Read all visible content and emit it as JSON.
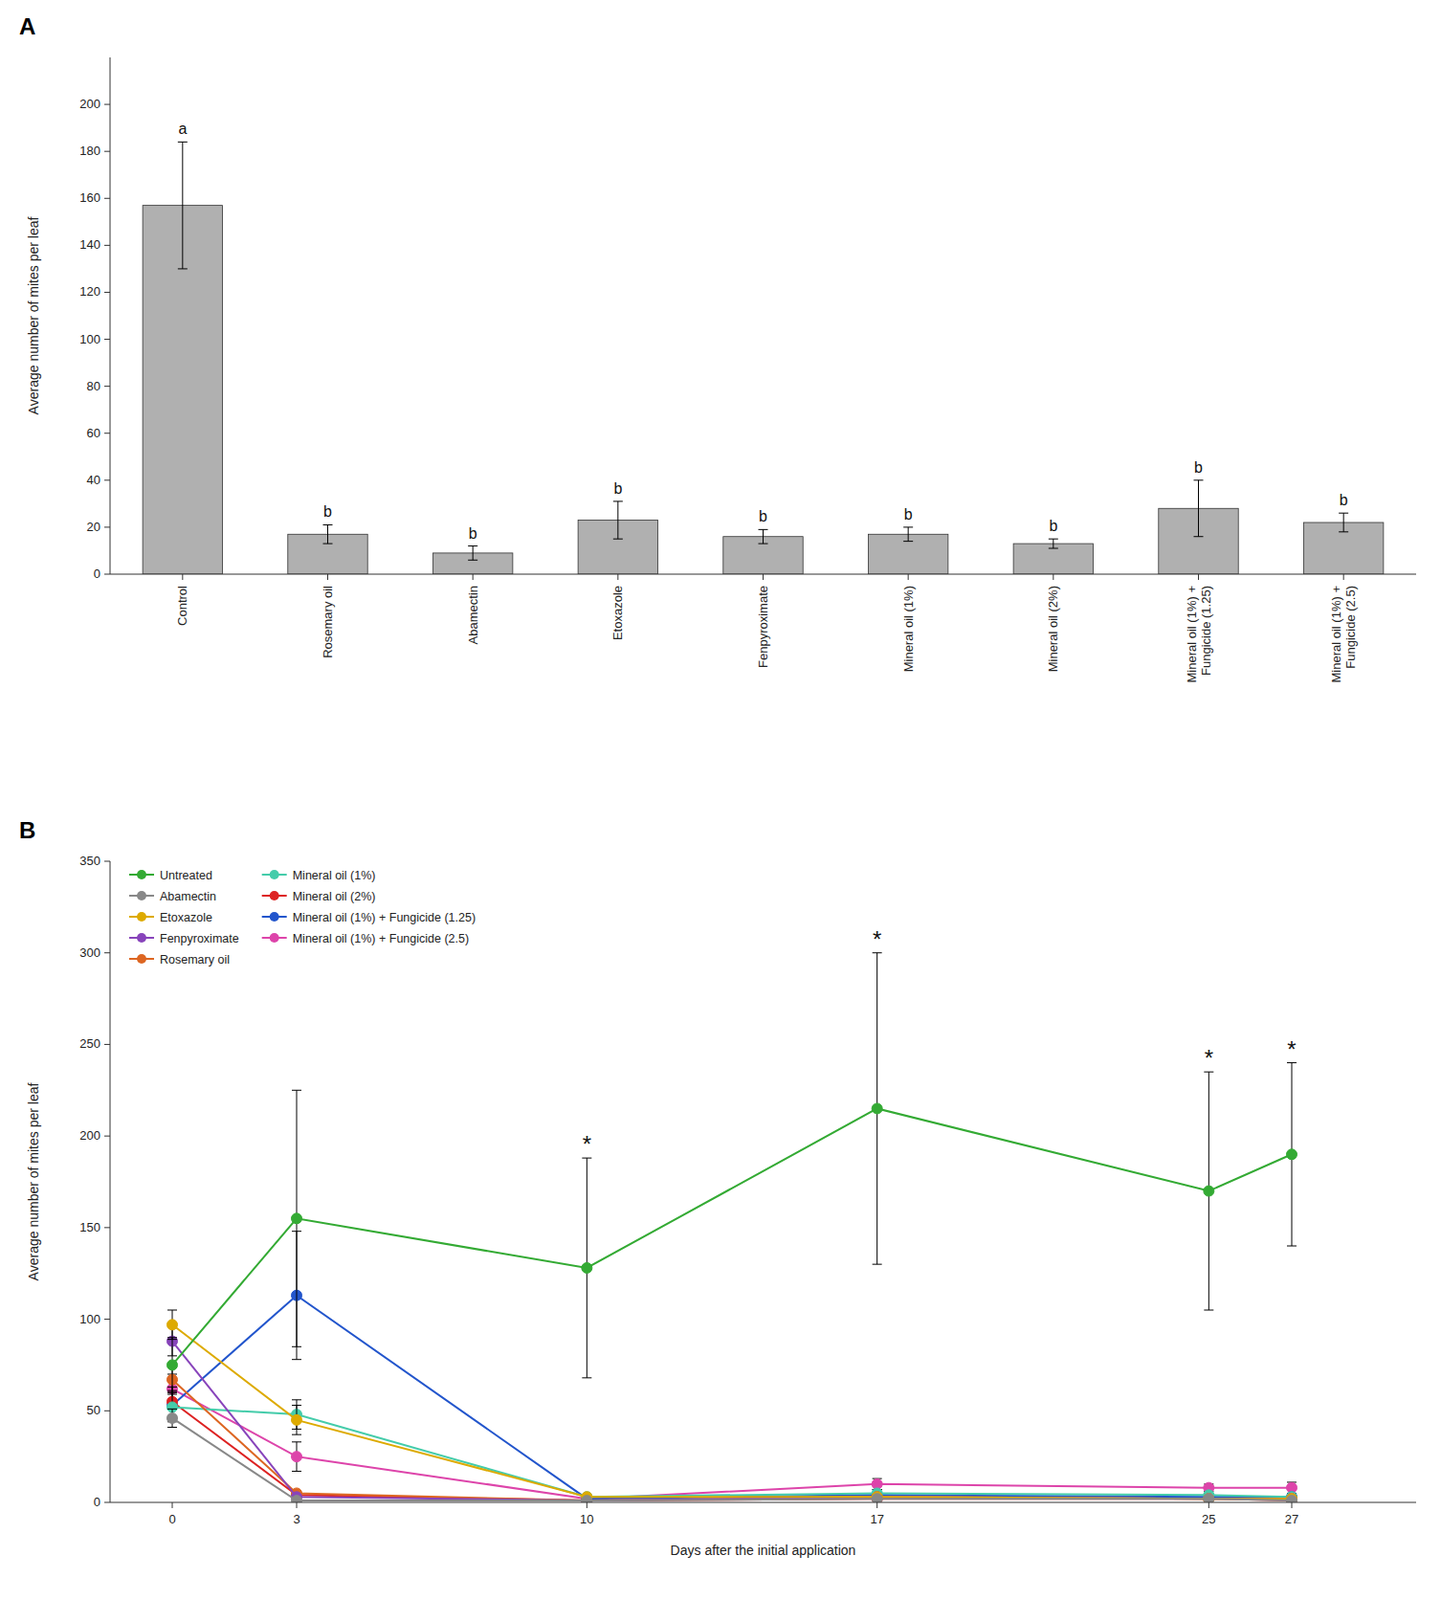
{
  "chart_data": [
    {
      "type": "bar",
      "title": "A",
      "categories": [
        "Control",
        "Rosemary oil",
        "Abamectin",
        "Etoxazole",
        "Fenpyroximate",
        "Mineral oil (1%)",
        "Mineral oil (2%)",
        "Mineral oil (1%) +\nFungicide (1.25)",
        "Mineral oil (1%) +\nFungicide (2.5)"
      ],
      "values": [
        157,
        17,
        9,
        23,
        16,
        17,
        13,
        28,
        22
      ],
      "errors": [
        27,
        4,
        3,
        8,
        3,
        3,
        2,
        12,
        4
      ],
      "annotations": [
        "a",
        "b",
        "b",
        "b",
        "b",
        "b",
        "b",
        "b",
        "b"
      ],
      "color": "#b0b0b0",
      "ylabel": "Average number of mites per leaf",
      "ylim": [
        0,
        220
      ],
      "yticks": [
        0,
        20,
        40,
        60,
        80,
        100,
        120,
        140,
        160,
        180,
        200
      ],
      "grid": false
    },
    {
      "type": "line",
      "title": "B",
      "x": [
        0,
        3,
        10,
        17,
        25,
        27
      ],
      "series": [
        {
          "name": "Untreated",
          "color": "#33aa33",
          "values": [
            75,
            155,
            128,
            215,
            170,
            190
          ],
          "errors": [
            15,
            70,
            60,
            85,
            65,
            50
          ]
        },
        {
          "name": "Abamectin",
          "color": "#888888",
          "values": [
            46,
            1,
            1,
            2,
            2,
            1
          ],
          "errors": [
            5,
            0.5,
            0.3,
            0.5,
            0.5,
            0.3
          ]
        },
        {
          "name": "Etoxazole",
          "color": "#ddaa00",
          "values": [
            97,
            45,
            3,
            3,
            2,
            2
          ],
          "errors": [
            8,
            8,
            0.5,
            1,
            0.5,
            0.5
          ]
        },
        {
          "name": "Fenpyroximate",
          "color": "#8844bb",
          "values": [
            88,
            3,
            1,
            3,
            2,
            2
          ],
          "errors": [
            8,
            1,
            0.3,
            1,
            0.5,
            0.5
          ]
        },
        {
          "name": "Rosemary oil",
          "color": "#dd6622",
          "values": [
            67,
            5,
            1,
            3,
            2,
            2
          ],
          "errors": [
            8,
            1.5,
            0.3,
            1,
            0.5,
            0.5
          ]
        },
        {
          "name": "Mineral oil (1%)",
          "color": "#44ccaa",
          "values": [
            52,
            48,
            3,
            5,
            4,
            3
          ],
          "errors": [
            8,
            8,
            0.5,
            2,
            1,
            1
          ]
        },
        {
          "name": "Mineral oil (2%)",
          "color": "#dd2222",
          "values": [
            55,
            4,
            1,
            2,
            2,
            1
          ],
          "errors": [
            8,
            1,
            0.3,
            0.5,
            0.5,
            0.3
          ]
        },
        {
          "name": "Mineral oil (1%) + Fungicide (1.25)",
          "color": "#2255cc",
          "values": [
            53,
            113,
            2,
            4,
            3,
            3
          ],
          "errors": [
            8,
            35,
            0.3,
            1,
            1,
            1
          ]
        },
        {
          "name": "Mineral oil (1%) + Fungicide (2.5)",
          "color": "#dd44aa",
          "values": [
            62,
            25,
            2,
            10,
            8,
            8
          ],
          "errors": [
            8,
            8,
            0.3,
            3,
            2,
            3
          ]
        }
      ],
      "annotations": [
        {
          "text": "*",
          "x": 10
        },
        {
          "text": "*",
          "x": 17
        },
        {
          "text": "*",
          "x": 25
        },
        {
          "text": "*",
          "x": 27
        }
      ],
      "xlabel": "Days after the initial application",
      "ylabel": "Average number of mites per leaf",
      "xlim": [
        -1.5,
        30
      ],
      "xticks": [
        0,
        3,
        10,
        17,
        25,
        27
      ],
      "ylim": [
        0,
        350
      ],
      "yticks": [
        0,
        50,
        100,
        150,
        200,
        250,
        300,
        350
      ],
      "marker": "circle",
      "legend": "upper left",
      "grid": false
    }
  ]
}
